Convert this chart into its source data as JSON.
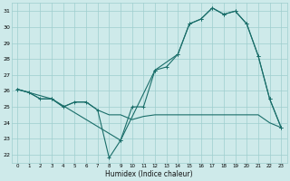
{
  "xlabel": "Humidex (Indice chaleur)",
  "bg_color": "#ceeaea",
  "grid_color": "#9ecece",
  "line_color": "#1a6e6a",
  "xlim": [
    -0.5,
    23.5
  ],
  "ylim": [
    21.5,
    31.5
  ],
  "yticks": [
    22,
    23,
    24,
    25,
    26,
    27,
    28,
    29,
    30,
    31
  ],
  "xticks": [
    0,
    1,
    2,
    3,
    4,
    5,
    6,
    7,
    8,
    9,
    10,
    11,
    12,
    13,
    14,
    15,
    16,
    17,
    18,
    19,
    20,
    21,
    22,
    23
  ],
  "line1_x": [
    0,
    1,
    2,
    3,
    4,
    5,
    6,
    7,
    8,
    9,
    10,
    11,
    12,
    13,
    14,
    15,
    16,
    17,
    18,
    19,
    20,
    21,
    22,
    23
  ],
  "line1_y": [
    26.1,
    25.9,
    25.5,
    25.5,
    25.0,
    25.3,
    25.3,
    24.8,
    21.8,
    22.9,
    25.0,
    25.0,
    27.3,
    27.5,
    28.3,
    30.2,
    30.5,
    31.2,
    30.8,
    31.0,
    30.2,
    28.2,
    25.5,
    23.7
  ],
  "line2_x": [
    0,
    1,
    2,
    3,
    4,
    5,
    6,
    7,
    8,
    9,
    10,
    11,
    12,
    13,
    14,
    15,
    16,
    17,
    18,
    19,
    20,
    21,
    22,
    23
  ],
  "line2_y": [
    26.1,
    25.9,
    25.5,
    25.5,
    25.0,
    25.3,
    25.3,
    24.8,
    24.5,
    24.5,
    24.2,
    24.4,
    24.5,
    24.5,
    24.5,
    24.5,
    24.5,
    24.5,
    24.5,
    24.5,
    24.5,
    24.5,
    24.0,
    23.7
  ],
  "line3_x": [
    0,
    3,
    9,
    12,
    14,
    15,
    16,
    17,
    18,
    19,
    20,
    21,
    22,
    23
  ],
  "line3_y": [
    26.1,
    25.5,
    22.9,
    27.3,
    28.3,
    30.2,
    30.5,
    31.2,
    30.8,
    31.0,
    30.2,
    28.2,
    25.5,
    23.7
  ]
}
